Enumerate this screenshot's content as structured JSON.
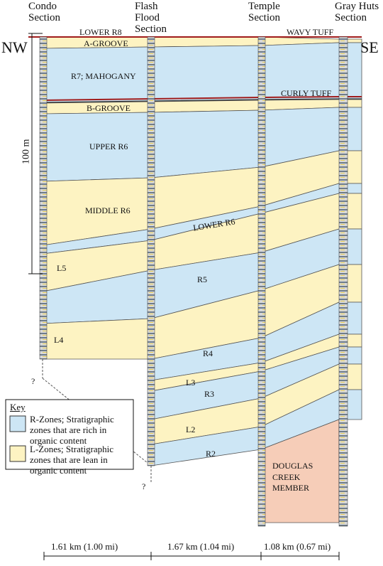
{
  "sections": [
    "Condo Section",
    "Flash Flood Section",
    "Temple Section",
    "Gray Huts Section"
  ],
  "orientation": {
    "left": "NW",
    "right": "SE"
  },
  "zones": {
    "lower_r8": "LOWER R8",
    "wavy_tuff": "WAVY TUFF",
    "a_groove": "A-GROOVE",
    "r7": "R7; MAHOGANY",
    "curly_tuff": "CURLY TUFF",
    "b_groove": "B-GROOVE",
    "upper_r6": "UPPER R6",
    "middle_r6": "MIDDLE R6",
    "lower_r6": "LOWER R6",
    "l5": "L5",
    "r5": "R5",
    "l4": "L4",
    "r4": "R4",
    "l3": "L3",
    "r3": "R3",
    "l2": "L2",
    "r2": "R2",
    "douglas_creek": "DOUGLAS CREEK MEMBER"
  },
  "scale_label": "100 m",
  "unknown_marks": [
    "?",
    "?"
  ],
  "key": {
    "title": "Key",
    "items": [
      "R-Zones; Stratigraphic zones that are rich in organic content",
      "L-Zones; Stratigraphic zones that are lean in organic content"
    ]
  },
  "distances": [
    "1.61 km (1.00 mi)",
    "1.67 km (1.04 mi)",
    "1.08 km (0.67 mi)"
  ]
}
